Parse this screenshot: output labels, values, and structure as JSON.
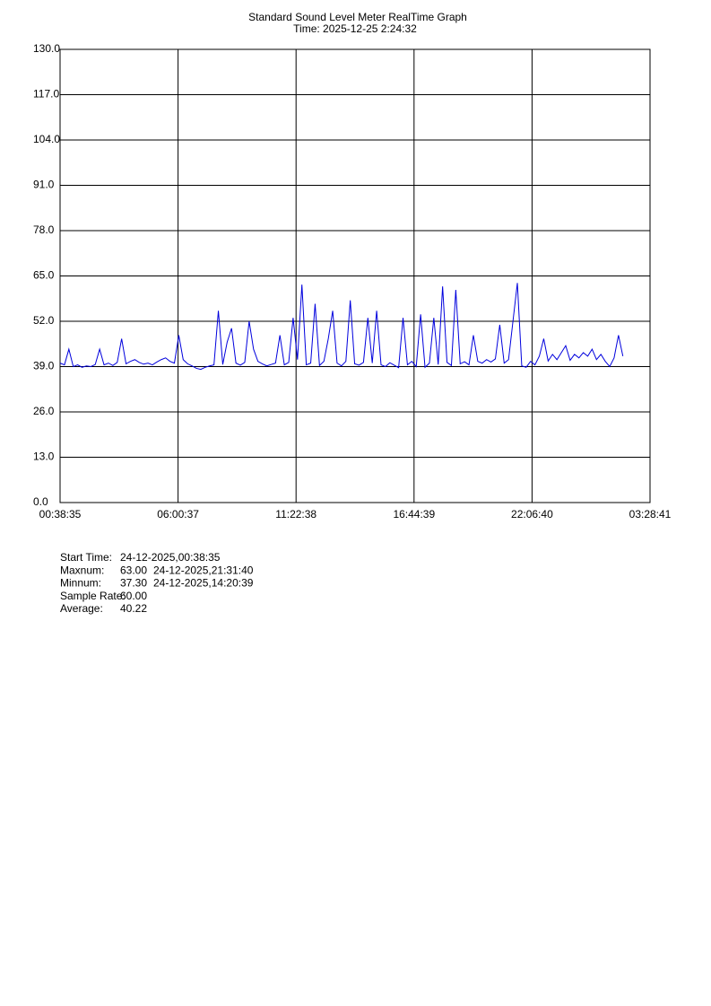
{
  "chart_data": {
    "type": "line",
    "title": "Standard Sound Level Meter RealTime Graph",
    "subtitle": "Time: 2025-12-25  2:24:32",
    "grid": true,
    "ylim": [
      0,
      130
    ],
    "yticks": [
      {
        "value": 0,
        "label": "0.0"
      },
      {
        "value": 13,
        "label": "13.0"
      },
      {
        "value": 26,
        "label": "26.0"
      },
      {
        "value": 39,
        "label": "39.0"
      },
      {
        "value": 52,
        "label": "52.0"
      },
      {
        "value": 65,
        "label": "65.0"
      },
      {
        "value": 78,
        "label": "78.0"
      },
      {
        "value": 91,
        "label": "91.0"
      },
      {
        "value": 104,
        "label": "104.0"
      },
      {
        "value": 117,
        "label": "117.0"
      },
      {
        "value": 130,
        "label": "130.0"
      }
    ],
    "xlim": [
      0,
      26.835
    ],
    "xticks": [
      {
        "value": 0,
        "label": "00:38:35"
      },
      {
        "value": 5.367,
        "label": "06:00:37"
      },
      {
        "value": 10.734,
        "label": "11:22:38"
      },
      {
        "value": 16.101,
        "label": "16:44:39"
      },
      {
        "value": 21.468,
        "label": "22:06:40"
      },
      {
        "value": 26.835,
        "label": "03:28:41"
      }
    ],
    "series": [
      {
        "color": "#0000dd",
        "x": [
          0,
          0.2,
          0.4,
          0.6,
          0.8,
          1,
          1.2,
          1.4,
          1.6,
          1.8,
          2,
          2.2,
          2.4,
          2.6,
          2.8,
          3,
          3.2,
          3.4,
          3.6,
          3.8,
          4,
          4.2,
          4.4,
          4.6,
          4.8,
          5,
          5.2,
          5.4,
          5.6,
          5.8,
          6,
          6.2,
          6.4,
          6.6,
          6.8,
          7,
          7.2,
          7.4,
          7.6,
          7.8,
          8,
          8.2,
          8.4,
          8.6,
          8.8,
          9,
          9.2,
          9.4,
          9.6,
          9.8,
          10,
          10.2,
          10.4,
          10.6,
          10.8,
          11,
          11.2,
          11.4,
          11.6,
          11.8,
          12,
          12.2,
          12.4,
          12.6,
          12.8,
          13,
          13.2,
          13.4,
          13.6,
          13.8,
          14,
          14.2,
          14.4,
          14.6,
          14.8,
          15,
          15.2,
          15.4,
          15.6,
          15.8,
          16,
          16.2,
          16.4,
          16.6,
          16.8,
          17,
          17.2,
          17.4,
          17.6,
          17.8,
          18,
          18.2,
          18.4,
          18.6,
          18.8,
          19,
          19.2,
          19.4,
          19.6,
          19.8,
          20,
          20.2,
          20.4,
          20.6,
          20.8,
          21,
          21.2,
          21.4,
          21.6,
          21.8,
          22,
          22.2,
          22.4,
          22.6,
          22.8,
          23,
          23.2,
          23.4,
          23.6,
          23.8,
          24,
          24.2,
          24.4,
          24.6,
          24.8,
          25,
          25.2,
          25.4,
          25.6
        ],
        "values": [
          40,
          39.5,
          44,
          39,
          39.5,
          38.8,
          39.2,
          39,
          39.6,
          44,
          39.5,
          40,
          39.3,
          40.2,
          47,
          39.8,
          40.5,
          41,
          40.2,
          39.7,
          40,
          39.5,
          40.3,
          41,
          41.5,
          40.5,
          40,
          48,
          41,
          39.8,
          39.2,
          38.5,
          38.2,
          38.8,
          39.2,
          39.5,
          55,
          39.6,
          46,
          50,
          40,
          39.4,
          40.2,
          52,
          44,
          40.5,
          39.8,
          39.2,
          39.6,
          40,
          48,
          39.5,
          40.2,
          53,
          41,
          62.5,
          39.5,
          40,
          57,
          39.3,
          40.5,
          47,
          55,
          40,
          39.2,
          40.5,
          58,
          39.8,
          39.4,
          40.2,
          53,
          40,
          55,
          39.5,
          39,
          40.1,
          39.4,
          38.7,
          53,
          39.5,
          40.5,
          39,
          54,
          38.8,
          40,
          53,
          39.6,
          62,
          40.2,
          39.3,
          61,
          39.8,
          40.4,
          39.5,
          48,
          40.5,
          40,
          41,
          40.3,
          41.2,
          51,
          40,
          41,
          52,
          63,
          39.2,
          38.8,
          40.5,
          39.5,
          42,
          47,
          40.6,
          42.5,
          41,
          43,
          45,
          40.8,
          42.5,
          41.5,
          43,
          42,
          44,
          41,
          42.5,
          40.5,
          39,
          41.5,
          48,
          42
        ]
      }
    ]
  },
  "info": [
    {
      "label": "Start Time:",
      "value": "24-12-2025,00:38:35"
    },
    {
      "label": "Maxnum:",
      "value": "63.00",
      "time": "24-12-2025,21:31:40"
    },
    {
      "label": "Minnum:",
      "value": "37.30",
      "time": "24-12-2025,14:20:39"
    },
    {
      "label": "Sample Rate:",
      "value": "60.00"
    },
    {
      "label": "Average:",
      "value": "40.22"
    }
  ]
}
